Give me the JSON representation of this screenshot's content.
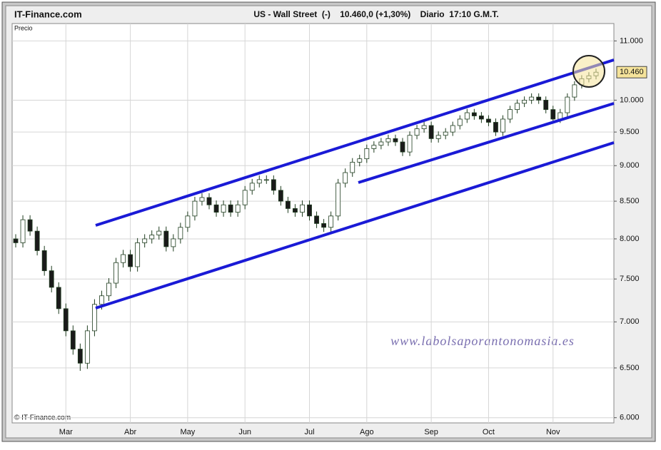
{
  "header": {
    "brand": "IT-Finance.com",
    "title": "US - Wall Street  (-)    10.460,0 (+1,30%)    Diario  17:10 G.M.T."
  },
  "chart_data": {
    "type": "candlestick",
    "y_label": "Precio",
    "copyright": "© IT-Finance.com",
    "watermark": "www.labolsaporantonomasia.es",
    "log_scale": true,
    "grid": true,
    "up_color": "#ffffff",
    "down_color": "#1a1a1a",
    "outline_color": "#1f3d1f",
    "ylim": [
      5950,
      11260
    ],
    "yticks": [
      {
        "value": 6000,
        "label": "6.000"
      },
      {
        "value": 6500,
        "label": "6.500"
      },
      {
        "value": 7000,
        "label": "7.000"
      },
      {
        "value": 7500,
        "label": "7.500"
      },
      {
        "value": 8000,
        "label": "8.000"
      },
      {
        "value": 8500,
        "label": "8.500"
      },
      {
        "value": 9000,
        "label": "9.000"
      },
      {
        "value": 9500,
        "label": "9.500"
      },
      {
        "value": 10000,
        "label": "10.000"
      },
      {
        "value": 11000,
        "label": "11.000"
      }
    ],
    "last_price": {
      "value": 10460,
      "label": "10.460"
    },
    "categories": [
      null,
      null,
      null,
      null,
      null,
      null,
      null,
      "Mar",
      null,
      null,
      null,
      null,
      null,
      null,
      null,
      null,
      "Abr",
      null,
      null,
      null,
      null,
      null,
      null,
      null,
      "May",
      null,
      null,
      null,
      null,
      null,
      null,
      null,
      "Jun",
      null,
      null,
      null,
      null,
      null,
      null,
      null,
      null,
      "Jul",
      null,
      null,
      null,
      null,
      null,
      null,
      null,
      "Ago",
      null,
      null,
      null,
      null,
      null,
      null,
      null,
      null,
      "Sep",
      null,
      null,
      null,
      null,
      null,
      null,
      null,
      "Oct",
      null,
      null,
      null,
      null,
      null,
      null,
      null,
      null,
      "Nov",
      null,
      null,
      null,
      null,
      null,
      null
    ],
    "open": [
      8000,
      7950,
      8250,
      8100,
      7850,
      7600,
      7400,
      7150,
      6900,
      6700,
      6550,
      6900,
      7200,
      7300,
      7450,
      7700,
      7800,
      7650,
      7950,
      8000,
      8050,
      8100,
      7900,
      8000,
      8150,
      8300,
      8500,
      8550,
      8450,
      8350,
      8450,
      8350,
      8450,
      8650,
      8750,
      8800,
      8800,
      8650,
      8500,
      8400,
      8350,
      8450,
      8300,
      8200,
      8150,
      8300,
      8750,
      8900,
      9050,
      9100,
      9250,
      9300,
      9350,
      9400,
      9350,
      9200,
      9450,
      9550,
      9600,
      9400,
      9450,
      9500,
      9600,
      9700,
      9800,
      9750,
      9700,
      9650,
      9500,
      9700,
      9850,
      9950,
      10000,
      10050,
      10000,
      9850,
      9700,
      9800,
      10050,
      10250,
      10350,
      10400
    ],
    "high": [
      8060,
      8310,
      8310,
      8160,
      7910,
      7660,
      7460,
      7210,
      6960,
      6760,
      6960,
      7260,
      7360,
      7510,
      7760,
      7860,
      7860,
      8010,
      8060,
      8110,
      8160,
      8160,
      8060,
      8210,
      8360,
      8560,
      8610,
      8610,
      8510,
      8510,
      8510,
      8510,
      8710,
      8810,
      8860,
      8860,
      8860,
      8710,
      8560,
      8460,
      8510,
      8510,
      8360,
      8260,
      8360,
      8810,
      8960,
      9110,
      9160,
      9310,
      9360,
      9410,
      9460,
      9460,
      9410,
      9510,
      9610,
      9660,
      9660,
      9510,
      9560,
      9660,
      9760,
      9860,
      9860,
      9810,
      9760,
      9710,
      9760,
      9910,
      10010,
      10060,
      10110,
      10110,
      10060,
      9910,
      9860,
      10110,
      10310,
      10410,
      10460,
      10520
    ],
    "low": [
      7890,
      7890,
      8040,
      7790,
      7540,
      7340,
      7090,
      6840,
      6640,
      6470,
      6490,
      6840,
      7140,
      7240,
      7390,
      7640,
      7590,
      7590,
      7890,
      7940,
      7990,
      7840,
      7840,
      7940,
      8090,
      8240,
      8440,
      8390,
      8290,
      8290,
      8290,
      8290,
      8390,
      8590,
      8690,
      8740,
      8590,
      8440,
      8340,
      8290,
      8290,
      8240,
      8140,
      8090,
      8090,
      8240,
      8690,
      8840,
      8990,
      9040,
      9190,
      9240,
      9290,
      9290,
      9140,
      9140,
      9390,
      9490,
      9340,
      9340,
      9390,
      9440,
      9540,
      9640,
      9690,
      9640,
      9590,
      9440,
      9440,
      9640,
      9790,
      9890,
      9940,
      9940,
      9790,
      9640,
      9640,
      9740,
      9990,
      10190,
      10290,
      10340
    ],
    "close": [
      7950,
      8250,
      8100,
      7850,
      7600,
      7400,
      7150,
      6900,
      6700,
      6550,
      6900,
      7200,
      7300,
      7450,
      7700,
      7800,
      7650,
      7950,
      8000,
      8050,
      8100,
      7900,
      8000,
      8150,
      8300,
      8500,
      8550,
      8450,
      8350,
      8450,
      8350,
      8450,
      8650,
      8750,
      8800,
      8800,
      8650,
      8500,
      8400,
      8350,
      8450,
      8300,
      8200,
      8150,
      8300,
      8750,
      8900,
      9050,
      9100,
      9250,
      9300,
      9350,
      9400,
      9350,
      9200,
      9450,
      9550,
      9600,
      9400,
      9450,
      9500,
      9600,
      9700,
      9800,
      9750,
      9700,
      9650,
      9500,
      9700,
      9850,
      9950,
      10000,
      10050,
      10000,
      9850,
      9700,
      9800,
      10050,
      10250,
      10350,
      10400,
      10460
    ]
  }
}
